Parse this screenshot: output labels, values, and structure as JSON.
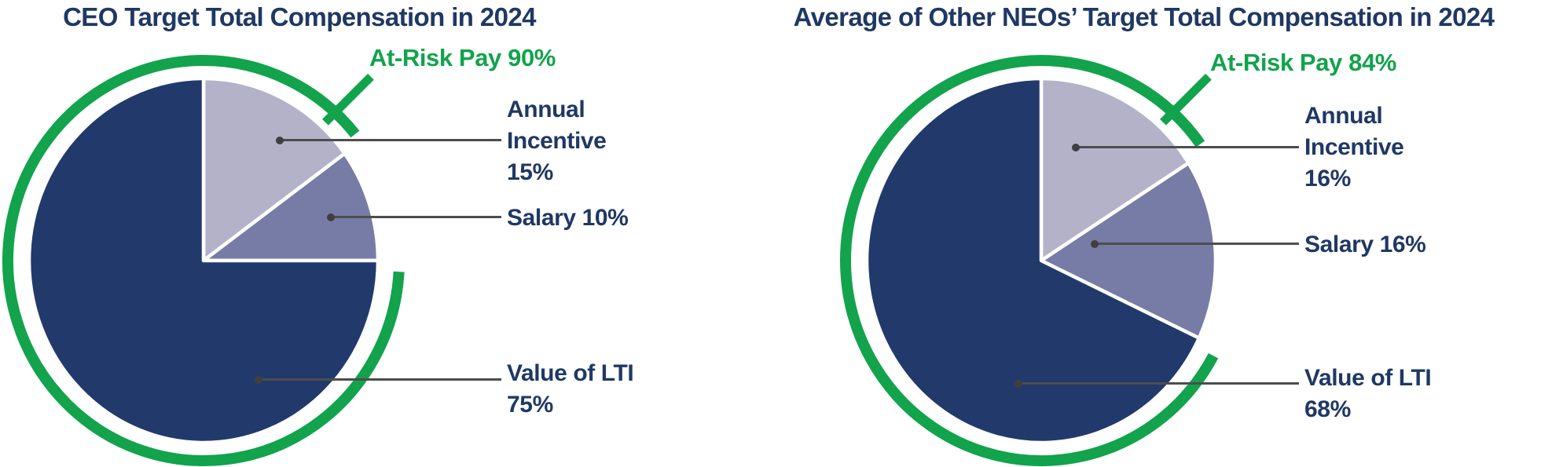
{
  "page": {
    "background": "#FFFFFF"
  },
  "colors": {
    "navy": "#213A6B",
    "lavender": "#B3B2C8",
    "slate": "#767CA5",
    "green": "#12A34C",
    "title_text": "#1F3864",
    "leader_line": "#4D4D4D"
  },
  "chart_data": [
    {
      "type": "pie",
      "title": "CEO Target Total Compensation in 2024",
      "categories": [
        "Annual Incentive",
        "Salary",
        "Value of LTI"
      ],
      "values": [
        15,
        10,
        75
      ],
      "slice_colors": [
        "#B3B2C8",
        "#767CA5",
        "#213A6B"
      ],
      "start_angle_deg": 0,
      "direction": "clockwise",
      "at_risk": {
        "label": "At-Risk Pay 90%",
        "value": 90,
        "covers": [
          "Annual Incentive",
          "Value of LTI"
        ],
        "excluded_slice_index": 1,
        "color": "#12A34C"
      },
      "callouts": [
        {
          "slice": "Annual Incentive",
          "lines": [
            "Annual",
            "Incentive",
            "15%"
          ]
        },
        {
          "slice": "Salary",
          "lines": [
            "Salary 10%"
          ]
        },
        {
          "slice": "Value of LTI",
          "lines": [
            "Value of LTI",
            "75%"
          ]
        }
      ]
    },
    {
      "type": "pie",
      "title": "Average of Other NEOs’ Target Total Compensation in 2024",
      "categories": [
        "Annual Incentive",
        "Salary",
        "Value of LTI"
      ],
      "values": [
        16,
        16,
        68
      ],
      "slice_colors": [
        "#B3B2C8",
        "#767CA5",
        "#213A6B"
      ],
      "start_angle_deg": 0,
      "direction": "clockwise",
      "at_risk": {
        "label": "At-Risk Pay 84%",
        "value": 84,
        "covers": [
          "Annual Incentive",
          "Value of LTI"
        ],
        "excluded_slice_index": 1,
        "color": "#12A34C"
      },
      "callouts": [
        {
          "slice": "Annual Incentive",
          "lines": [
            "Annual",
            "Incentive",
            "16%"
          ]
        },
        {
          "slice": "Salary",
          "lines": [
            "Salary 16%"
          ]
        },
        {
          "slice": "Value of LTI",
          "lines": [
            "Value of LTI",
            "68%"
          ]
        }
      ]
    }
  ]
}
